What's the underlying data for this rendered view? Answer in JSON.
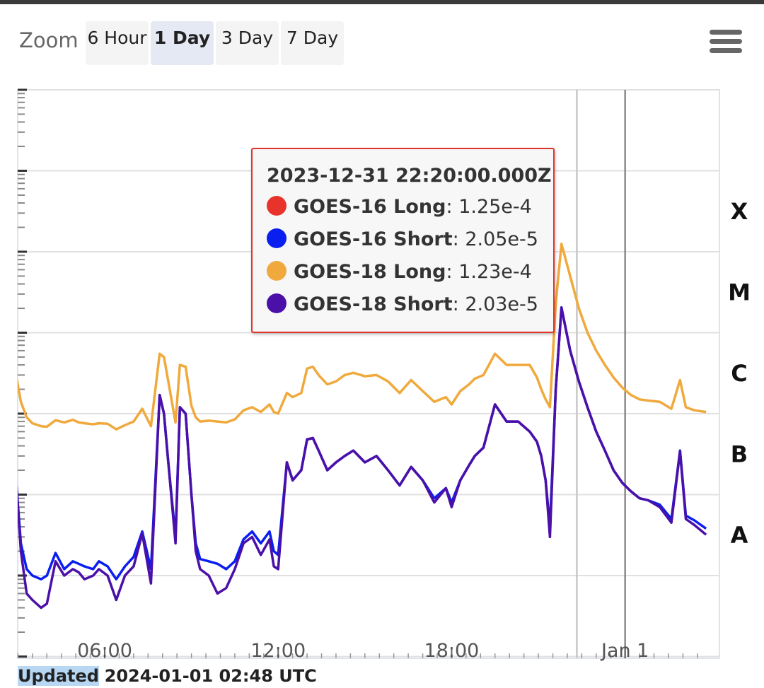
{
  "toolbar": {
    "zoom_label": "Zoom",
    "buttons": [
      "6 Hour",
      "1 Day",
      "3 Day",
      "7 Day"
    ],
    "active": "1 Day"
  },
  "tooltip": {
    "title": "2023-12-31 22:20:00.000Z",
    "rows": [
      {
        "name": "GOES-16 Long",
        "value": "1.25e-4",
        "color": "#e8332a"
      },
      {
        "name": "GOES-16 Short",
        "value": "2.05e-5",
        "color": "#0a1ef0"
      },
      {
        "name": "GOES-18 Long",
        "value": "1.23e-4",
        "color": "#f0a93c"
      },
      {
        "name": "GOES-18 Short",
        "value": "2.03e-5",
        "color": "#4a10a8"
      }
    ]
  },
  "footer": {
    "updated_label": "Updated",
    "updated_value": "2024-01-01 02:48 UTC"
  },
  "chart_data": {
    "type": "line",
    "y_scale": "log",
    "ylim": [
      1e-09,
      0.01
    ],
    "flare_class_labels": [
      {
        "label": "X",
        "value": 0.0001
      },
      {
        "label": "M",
        "value": 1e-05
      },
      {
        "label": "C",
        "value": 1e-06
      },
      {
        "label": "B",
        "value": 1e-07
      },
      {
        "label": "A",
        "value": 1e-08
      }
    ],
    "x_tick_labels": [
      "06:00",
      "12:00",
      "18:00",
      "Jan 1"
    ],
    "x_tick_hours": [
      6,
      12,
      18,
      24
    ],
    "xlim_hours": [
      2.8,
      26.8
    ],
    "crosshair_hour": 22.33,
    "now_hour": 24.0,
    "grid": true,
    "legend": "none",
    "series": [
      {
        "name": "GOES-18 Long",
        "color": "#f0a93c",
        "x": [
          2.8,
          2.95,
          3.1,
          3.3,
          3.5,
          3.8,
          4.0,
          4.3,
          4.6,
          4.9,
          5.1,
          5.3,
          5.6,
          5.8,
          6.1,
          6.4,
          6.7,
          7.0,
          7.3,
          7.6,
          7.9,
          8.05,
          8.2,
          8.45,
          8.6,
          8.8,
          9.0,
          9.15,
          9.3,
          9.6,
          9.9,
          10.2,
          10.5,
          10.8,
          11.1,
          11.4,
          11.7,
          11.85,
          12.0,
          12.3,
          12.5,
          12.8,
          13.0,
          13.2,
          13.4,
          13.7,
          14.0,
          14.3,
          14.6,
          15.0,
          15.4,
          15.8,
          16.2,
          16.6,
          17.0,
          17.4,
          17.8,
          18.0,
          18.3,
          18.6,
          18.8,
          19.1,
          19.5,
          19.9,
          20.3,
          20.7,
          20.95,
          21.1,
          21.25,
          21.4,
          21.6,
          21.8,
          22.1,
          22.4,
          22.7,
          23.0,
          23.3,
          23.6,
          23.9,
          24.2,
          24.5,
          24.8,
          25.2,
          25.6,
          25.9,
          26.1,
          26.4,
          26.8
        ],
        "y": [
          1.3e-06,
          2.8e-06,
          1.4e-06,
          9e-07,
          7.6e-07,
          7e-07,
          6.9e-07,
          8.3e-07,
          7.8e-07,
          8.4e-07,
          7.8e-07,
          7.6e-07,
          7.4e-07,
          7.6e-07,
          7.5e-07,
          6.4e-07,
          7.2e-07,
          8e-07,
          1.15e-06,
          7e-07,
          5.5e-06,
          5e-06,
          2.5e-06,
          7.8e-07,
          4e-06,
          3.8e-06,
          1.25e-06,
          9e-07,
          8e-07,
          8.2e-07,
          8e-07,
          7.8e-07,
          8.5e-07,
          1.1e-06,
          1.2e-06,
          1.05e-06,
          1.3e-06,
          1.05e-06,
          1e-06,
          1.8e-06,
          1.6e-06,
          1.8e-06,
          3.6e-06,
          3.8e-06,
          3e-06,
          2.3e-06,
          2.5e-06,
          3e-06,
          3.2e-06,
          2.9e-06,
          3e-06,
          2.5e-06,
          1.8e-06,
          2.6e-06,
          1.9e-06,
          1.4e-06,
          1.6e-06,
          1.3e-06,
          1.9e-06,
          2.3e-06,
          2.7e-06,
          3e-06,
          5.5e-06,
          4e-06,
          4e-06,
          4e-06,
          2.8e-06,
          2e-06,
          1.5e-06,
          1.2e-06,
          2.3e-05,
          0.000125,
          5e-05,
          2e-05,
          1e-05,
          6e-06,
          4e-06,
          2.8e-06,
          2.1e-06,
          1.7e-06,
          1.5e-06,
          1.45e-06,
          1.4e-06,
          1.15e-06,
          2.6e-06,
          1.2e-06,
          1.1e-06,
          1.05e-06
        ]
      },
      {
        "name": "GOES-16 Short",
        "color": "#0a1ef0",
        "x": [
          2.8,
          2.95,
          3.1,
          3.3,
          3.5,
          3.8,
          4.0,
          4.3,
          4.6,
          4.9,
          5.1,
          5.3,
          5.6,
          5.8,
          6.1,
          6.4,
          6.7,
          7.0,
          7.3,
          7.6,
          7.9,
          8.05,
          8.2,
          8.45,
          8.6,
          8.8,
          9.0,
          9.15,
          9.3,
          9.6,
          9.9,
          10.2,
          10.5,
          10.8,
          11.1,
          11.4,
          11.7,
          11.85,
          12.0,
          12.3,
          12.5,
          12.8,
          13.0,
          13.2,
          13.4,
          13.7,
          14.0,
          14.3,
          14.6,
          15.0,
          15.4,
          15.8,
          16.2,
          16.6,
          17.0,
          17.4,
          17.8,
          18.0,
          18.3,
          18.6,
          18.8,
          19.1,
          19.5,
          19.9,
          20.3,
          20.7,
          20.95,
          21.1,
          21.25,
          21.4,
          21.6,
          21.8,
          22.1,
          22.4,
          22.7,
          23.0,
          23.3,
          23.6,
          23.9,
          24.2,
          24.5,
          24.8,
          25.2,
          25.6,
          25.9,
          26.1,
          26.4,
          26.8
        ],
        "y": [
          7e-08,
          1.3e-07,
          2.5e-08,
          1.2e-08,
          1e-08,
          9e-09,
          1e-08,
          1.9e-08,
          1.2e-08,
          1.5e-08,
          1.4e-08,
          1.3e-08,
          1.2e-08,
          1.5e-08,
          1.3e-08,
          9e-09,
          1.3e-08,
          1.7e-08,
          3.5e-08,
          1.2e-08,
          1.7e-06,
          1e-06,
          2.5e-07,
          3e-08,
          1.2e-06,
          1e-06,
          1e-07,
          2.5e-08,
          1.6e-08,
          1.5e-08,
          1.4e-08,
          1.2e-08,
          1.5e-08,
          2.8e-08,
          3.5e-08,
          2.5e-08,
          3.5e-08,
          2e-08,
          1.8e-08,
          2.5e-07,
          1.5e-07,
          2e-07,
          4.8e-07,
          5e-07,
          3.5e-07,
          2e-07,
          2.5e-07,
          3e-07,
          3.5e-07,
          2.5e-07,
          3e-07,
          2e-07,
          1.3e-07,
          2.2e-07,
          1.5e-07,
          9e-08,
          1.2e-07,
          8e-08,
          1.5e-07,
          2.3e-07,
          3e-07,
          3.8e-07,
          1.3e-06,
          8e-07,
          8e-07,
          6e-07,
          4.5e-07,
          3e-07,
          1.5e-07,
          4e-08,
          2e-06,
          2.05e-05,
          6e-06,
          2.5e-06,
          1.2e-06,
          6e-07,
          3.5e-07,
          2e-07,
          1.4e-07,
          1.1e-07,
          9e-08,
          8.5e-08,
          7.5e-08,
          5e-08,
          3.5e-07,
          5.5e-08,
          4.8e-08,
          3.8e-08
        ]
      },
      {
        "name": "GOES-18 Short",
        "color": "#4a10a8",
        "x": [
          2.8,
          2.95,
          3.1,
          3.3,
          3.5,
          3.8,
          4.0,
          4.3,
          4.6,
          4.9,
          5.1,
          5.3,
          5.6,
          5.8,
          6.1,
          6.4,
          6.7,
          7.0,
          7.3,
          7.6,
          7.9,
          8.05,
          8.2,
          8.45,
          8.6,
          8.8,
          9.0,
          9.15,
          9.3,
          9.6,
          9.9,
          10.2,
          10.5,
          10.8,
          11.1,
          11.4,
          11.7,
          11.85,
          12.0,
          12.3,
          12.5,
          12.8,
          13.0,
          13.2,
          13.4,
          13.7,
          14.0,
          14.3,
          14.6,
          15.0,
          15.4,
          15.8,
          16.2,
          16.6,
          17.0,
          17.4,
          17.8,
          18.0,
          18.3,
          18.6,
          18.8,
          19.1,
          19.5,
          19.9,
          20.3,
          20.7,
          20.95,
          21.1,
          21.25,
          21.4,
          21.6,
          21.8,
          22.1,
          22.4,
          22.7,
          23.0,
          23.3,
          23.6,
          23.9,
          24.2,
          24.5,
          24.8,
          25.2,
          25.6,
          25.9,
          26.1,
          26.4,
          26.8
        ],
        "y": [
          7e-08,
          1.3e-07,
          2e-08,
          6e-09,
          5e-09,
          4e-09,
          4.5e-09,
          1.5e-08,
          1e-08,
          1.2e-08,
          1.1e-08,
          9e-09,
          1e-08,
          1.2e-08,
          1e-08,
          5e-09,
          1e-08,
          1.3e-08,
          3.3e-08,
          8e-09,
          1.7e-06,
          1e-06,
          2.5e-07,
          2.5e-08,
          1.2e-06,
          1e-06,
          1e-07,
          2e-08,
          1.2e-08,
          1e-08,
          6e-09,
          7e-09,
          1.2e-08,
          2.5e-08,
          3e-08,
          1.8e-08,
          2.8e-08,
          1.3e-08,
          1.2e-08,
          2.5e-07,
          1.5e-07,
          2e-07,
          4.8e-07,
          5e-07,
          3.5e-07,
          2e-07,
          2.5e-07,
          3e-07,
          3.5e-07,
          2.5e-07,
          3e-07,
          2e-07,
          1.3e-07,
          2.2e-07,
          1.5e-07,
          8e-08,
          1.2e-07,
          7e-08,
          1.5e-07,
          2.3e-07,
          3e-07,
          3.8e-07,
          1.3e-06,
          8e-07,
          8e-07,
          6e-07,
          4.5e-07,
          3e-07,
          1.5e-07,
          3e-08,
          2e-06,
          2.03e-05,
          6e-06,
          2.5e-06,
          1.2e-06,
          6e-07,
          3.5e-07,
          2e-07,
          1.4e-07,
          1.1e-07,
          9e-08,
          8.5e-08,
          7e-08,
          4.5e-08,
          3.4e-07,
          5e-08,
          4.2e-08,
          3.2e-08
        ]
      }
    ]
  }
}
